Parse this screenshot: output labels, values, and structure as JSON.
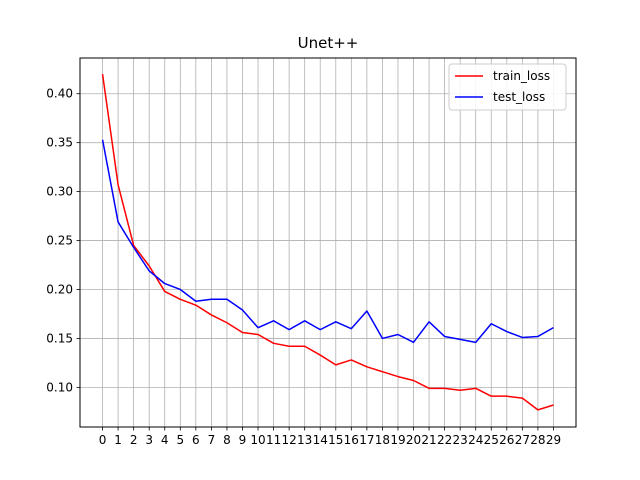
{
  "chart_data": {
    "type": "line",
    "title": "Unet++",
    "xlabel": "",
    "ylabel": "",
    "x": [
      0,
      1,
      2,
      3,
      4,
      5,
      6,
      7,
      8,
      9,
      10,
      11,
      12,
      13,
      14,
      15,
      16,
      17,
      18,
      19,
      20,
      21,
      22,
      23,
      24,
      25,
      26,
      27,
      28,
      29
    ],
    "xlim": [
      -1.45,
      30.45
    ],
    "ylim": [
      0.0595,
      0.4365
    ],
    "yticks": [
      0.1,
      0.15,
      0.2,
      0.25,
      0.3,
      0.35,
      0.4
    ],
    "ytick_labels": [
      "0.10",
      "0.15",
      "0.20",
      "0.25",
      "0.30",
      "0.35",
      "0.40"
    ],
    "grid": true,
    "legend_position": "top-right",
    "series": [
      {
        "name": "train_loss",
        "color": "#ff0000",
        "values": [
          0.42,
          0.307,
          0.245,
          0.224,
          0.198,
          0.19,
          0.184,
          0.174,
          0.166,
          0.156,
          0.154,
          0.145,
          0.142,
          0.142,
          0.133,
          0.123,
          0.128,
          0.121,
          0.116,
          0.111,
          0.107,
          0.099,
          0.099,
          0.097,
          0.099,
          0.091,
          0.091,
          0.089,
          0.077,
          0.082
        ]
      },
      {
        "name": "test_loss",
        "color": "#0000ff",
        "values": [
          0.353,
          0.269,
          0.243,
          0.219,
          0.206,
          0.2,
          0.188,
          0.19,
          0.19,
          0.179,
          0.161,
          0.168,
          0.159,
          0.168,
          0.159,
          0.167,
          0.16,
          0.178,
          0.15,
          0.154,
          0.146,
          0.167,
          0.152,
          0.149,
          0.146,
          0.165,
          0.157,
          0.151,
          0.152,
          0.161
        ]
      }
    ]
  }
}
